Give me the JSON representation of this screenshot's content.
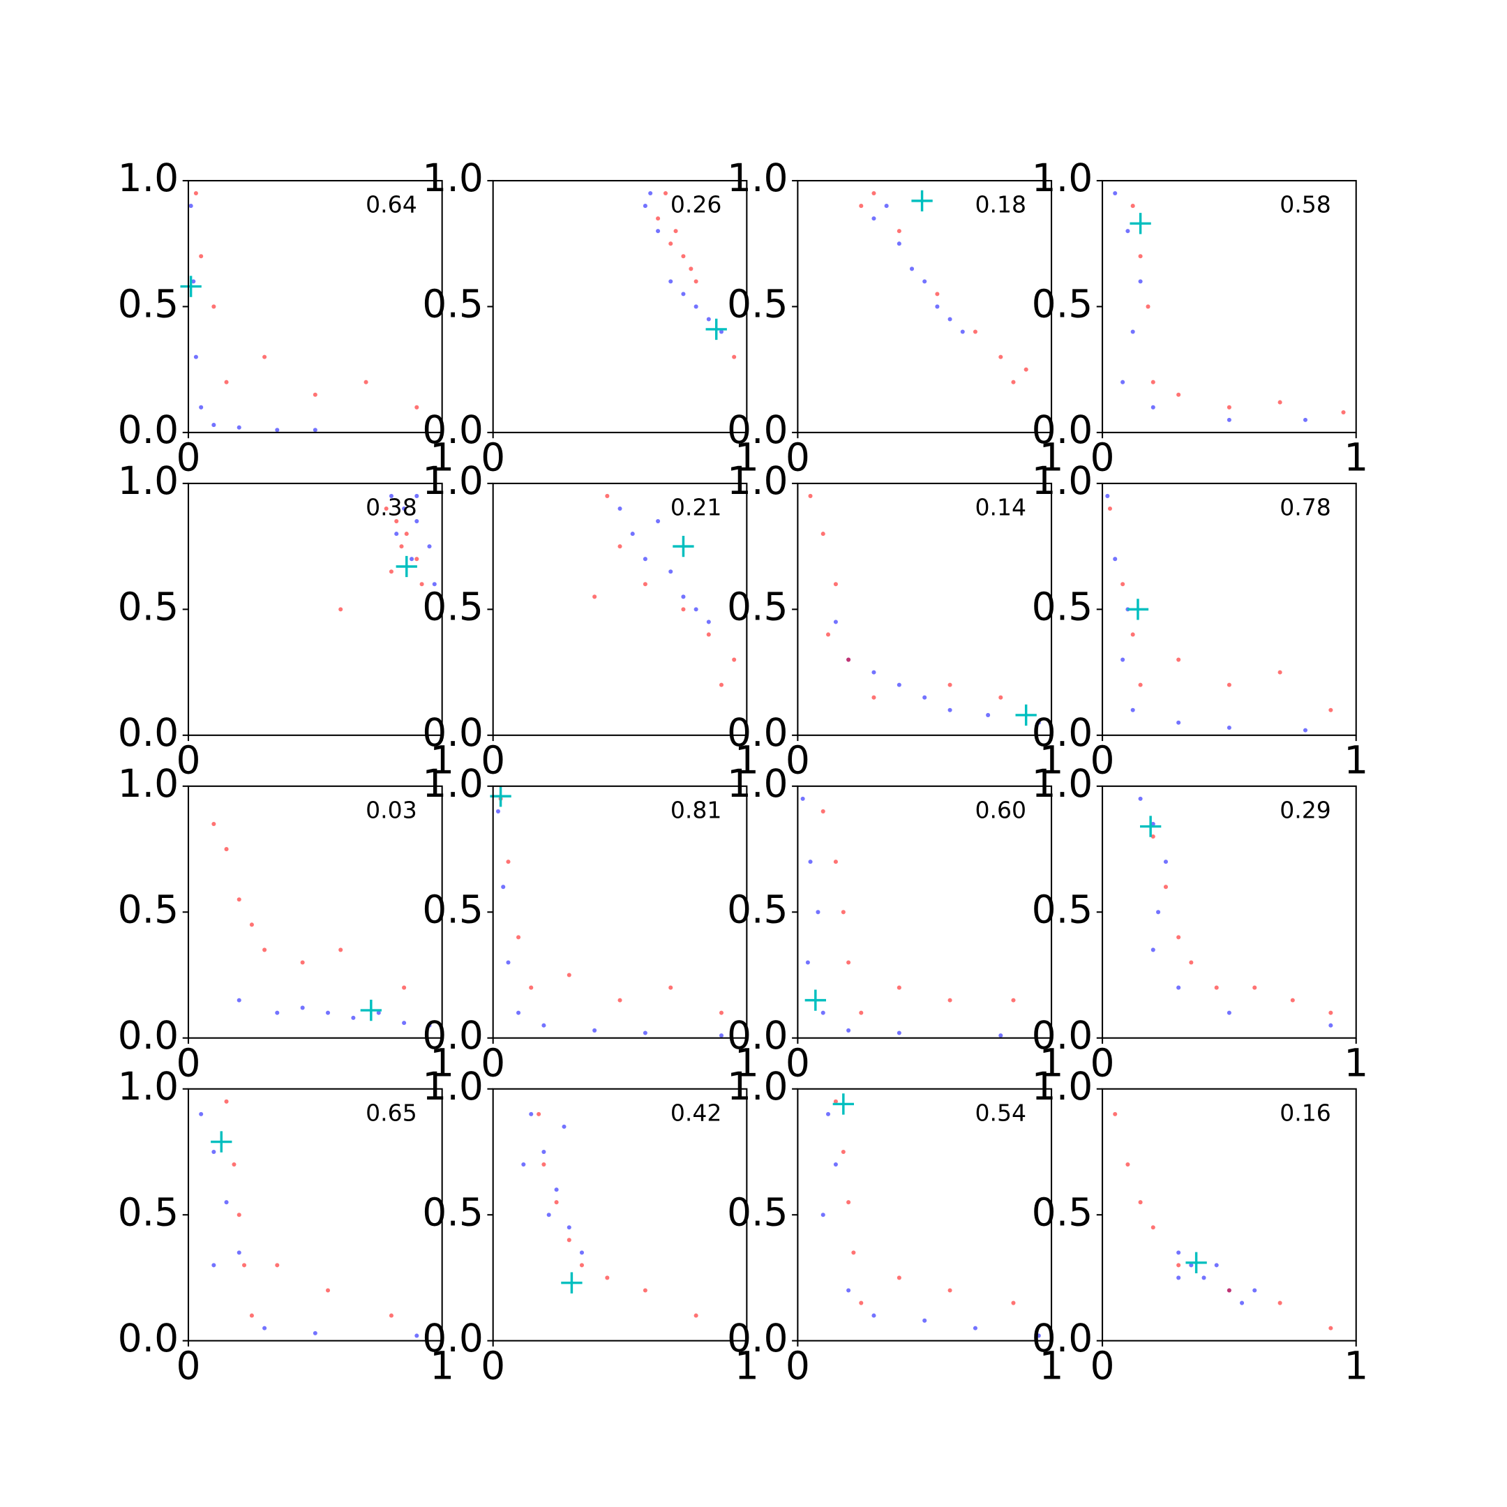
{
  "chart_data": {
    "type": "scatter",
    "xlim": [
      0,
      1
    ],
    "ylim": [
      0,
      1
    ],
    "xticks": [
      0,
      1
    ],
    "yticks": [
      {
        "value": 0,
        "label": "0.0"
      },
      {
        "value": 0.5,
        "label": "0.5"
      },
      {
        "value": 1,
        "label": "1.0"
      }
    ],
    "series_colors": [
      "#0000ff",
      "#ff0000"
    ],
    "marker_color": "#00bfbf",
    "panels": [
      {
        "annotation": "0.64",
        "marker": [
          0.01,
          0.58
        ],
        "series": [
          {
            "x": [
              0.01,
              0.02,
              0.03,
              0.05,
              0.1,
              0.2,
              0.35,
              0.5
            ],
            "y": [
              0.9,
              0.6,
              0.3,
              0.1,
              0.03,
              0.02,
              0.01,
              0.01
            ]
          },
          {
            "x": [
              0.03,
              0.05,
              0.1,
              0.15,
              0.3,
              0.5,
              0.7,
              0.9
            ],
            "y": [
              0.95,
              0.7,
              0.5,
              0.2,
              0.3,
              0.15,
              0.2,
              0.1
            ]
          }
        ]
      },
      {
        "annotation": "0.26",
        "marker": [
          0.88,
          0.41
        ],
        "series": [
          {
            "x": [
              0.6,
              0.65,
              0.7,
              0.75,
              0.8,
              0.85,
              0.62,
              0.9
            ],
            "y": [
              0.9,
              0.8,
              0.6,
              0.55,
              0.5,
              0.45,
              0.95,
              0.4
            ]
          },
          {
            "x": [
              0.65,
              0.7,
              0.75,
              0.78,
              0.8,
              0.72,
              0.68,
              0.95
            ],
            "y": [
              0.85,
              0.75,
              0.7,
              0.65,
              0.6,
              0.8,
              0.95,
              0.3
            ]
          }
        ]
      },
      {
        "annotation": "0.18",
        "marker": [
          0.49,
          0.92
        ],
        "series": [
          {
            "x": [
              0.3,
              0.4,
              0.45,
              0.5,
              0.55,
              0.6,
              0.35,
              0.65
            ],
            "y": [
              0.85,
              0.75,
              0.65,
              0.6,
              0.5,
              0.45,
              0.9,
              0.4
            ]
          },
          {
            "x": [
              0.3,
              0.4,
              0.55,
              0.7,
              0.8,
              0.9,
              0.25,
              0.85
            ],
            "y": [
              0.95,
              0.8,
              0.55,
              0.4,
              0.3,
              0.25,
              0.9,
              0.2
            ]
          }
        ]
      },
      {
        "annotation": "0.58",
        "marker": [
          0.15,
          0.83
        ],
        "series": [
          {
            "x": [
              0.05,
              0.1,
              0.15,
              0.12,
              0.08,
              0.2,
              0.5,
              0.8
            ],
            "y": [
              0.95,
              0.8,
              0.6,
              0.4,
              0.2,
              0.1,
              0.05,
              0.05
            ]
          },
          {
            "x": [
              0.12,
              0.15,
              0.18,
              0.2,
              0.3,
              0.5,
              0.7,
              0.95
            ],
            "y": [
              0.9,
              0.7,
              0.5,
              0.2,
              0.15,
              0.1,
              0.12,
              0.08
            ]
          }
        ]
      },
      {
        "annotation": "0.38",
        "marker": [
          0.86,
          0.67
        ],
        "series": [
          {
            "x": [
              0.8,
              0.85,
              0.9,
              0.95,
              0.88,
              0.82,
              0.97,
              0.9
            ],
            "y": [
              0.95,
              0.9,
              0.85,
              0.75,
              0.7,
              0.8,
              0.6,
              0.95
            ]
          },
          {
            "x": [
              0.78,
              0.82,
              0.86,
              0.9,
              0.84,
              0.8,
              0.92,
              0.6
            ],
            "y": [
              0.9,
              0.85,
              0.8,
              0.7,
              0.75,
              0.65,
              0.6,
              0.5
            ]
          }
        ]
      },
      {
        "annotation": "0.21",
        "marker": [
          0.75,
          0.75
        ],
        "series": [
          {
            "x": [
              0.5,
              0.55,
              0.6,
              0.7,
              0.75,
              0.8,
              0.65,
              0.85
            ],
            "y": [
              0.9,
              0.8,
              0.7,
              0.65,
              0.55,
              0.5,
              0.85,
              0.45
            ]
          },
          {
            "x": [
              0.45,
              0.5,
              0.6,
              0.75,
              0.85,
              0.95,
              0.4,
              0.9
            ],
            "y": [
              0.95,
              0.75,
              0.6,
              0.5,
              0.4,
              0.3,
              0.55,
              0.2
            ]
          }
        ]
      },
      {
        "annotation": "0.14",
        "marker": [
          0.9,
          0.08
        ],
        "series": [
          {
            "x": [
              0.15,
              0.2,
              0.3,
              0.4,
              0.5,
              0.6,
              0.75,
              0.95
            ],
            "y": [
              0.45,
              0.3,
              0.25,
              0.2,
              0.15,
              0.1,
              0.08,
              0.05
            ]
          },
          {
            "x": [
              0.05,
              0.1,
              0.15,
              0.12,
              0.2,
              0.3,
              0.6,
              0.8
            ],
            "y": [
              0.95,
              0.8,
              0.6,
              0.4,
              0.3,
              0.15,
              0.2,
              0.15
            ]
          }
        ]
      },
      {
        "annotation": "0.78",
        "marker": [
          0.14,
          0.5
        ],
        "series": [
          {
            "x": [
              0.02,
              0.05,
              0.1,
              0.08,
              0.12,
              0.3,
              0.5,
              0.8
            ],
            "y": [
              0.95,
              0.7,
              0.5,
              0.3,
              0.1,
              0.05,
              0.03,
              0.02
            ]
          },
          {
            "x": [
              0.03,
              0.08,
              0.12,
              0.15,
              0.3,
              0.5,
              0.7,
              0.9
            ],
            "y": [
              0.9,
              0.6,
              0.4,
              0.2,
              0.3,
              0.2,
              0.25,
              0.1
            ]
          }
        ]
      },
      {
        "annotation": "0.03",
        "marker": [
          0.72,
          0.11
        ],
        "series": [
          {
            "x": [
              0.35,
              0.45,
              0.55,
              0.65,
              0.75,
              0.85,
              0.95,
              0.2
            ],
            "y": [
              0.1,
              0.12,
              0.1,
              0.08,
              0.1,
              0.06,
              0.05,
              0.15
            ]
          },
          {
            "x": [
              0.1,
              0.15,
              0.2,
              0.25,
              0.3,
              0.45,
              0.6,
              0.85
            ],
            "y": [
              0.85,
              0.75,
              0.55,
              0.45,
              0.35,
              0.3,
              0.35,
              0.2
            ]
          }
        ]
      },
      {
        "annotation": "0.81",
        "marker": [
          0.03,
          0.96
        ],
        "series": [
          {
            "x": [
              0.02,
              0.04,
              0.06,
              0.1,
              0.2,
              0.4,
              0.6,
              0.9
            ],
            "y": [
              0.9,
              0.6,
              0.3,
              0.1,
              0.05,
              0.03,
              0.02,
              0.01
            ]
          },
          {
            "x": [
              0.03,
              0.06,
              0.1,
              0.15,
              0.3,
              0.5,
              0.7,
              0.9
            ],
            "y": [
              0.95,
              0.7,
              0.4,
              0.2,
              0.25,
              0.15,
              0.2,
              0.1
            ]
          }
        ]
      },
      {
        "annotation": "0.60",
        "marker": [
          0.07,
          0.15
        ],
        "series": [
          {
            "x": [
              0.02,
              0.05,
              0.08,
              0.04,
              0.1,
              0.2,
              0.4,
              0.8
            ],
            "y": [
              0.95,
              0.7,
              0.5,
              0.3,
              0.1,
              0.03,
              0.02,
              0.01
            ]
          },
          {
            "x": [
              0.1,
              0.15,
              0.18,
              0.2,
              0.25,
              0.4,
              0.6,
              0.85
            ],
            "y": [
              0.9,
              0.7,
              0.5,
              0.3,
              0.1,
              0.2,
              0.15,
              0.15
            ]
          }
        ]
      },
      {
        "annotation": "0.29",
        "marker": [
          0.19,
          0.84
        ],
        "series": [
          {
            "x": [
              0.15,
              0.2,
              0.25,
              0.22,
              0.2,
              0.3,
              0.5,
              0.9
            ],
            "y": [
              0.95,
              0.85,
              0.7,
              0.5,
              0.35,
              0.2,
              0.1,
              0.05
            ]
          },
          {
            "x": [
              0.2,
              0.25,
              0.3,
              0.35,
              0.45,
              0.6,
              0.75,
              0.9
            ],
            "y": [
              0.8,
              0.6,
              0.4,
              0.3,
              0.2,
              0.2,
              0.15,
              0.1
            ]
          }
        ]
      },
      {
        "annotation": "0.65",
        "marker": [
          0.13,
          0.79
        ],
        "series": [
          {
            "x": [
              0.05,
              0.1,
              0.15,
              0.2,
              0.1,
              0.3,
              0.5,
              0.9
            ],
            "y": [
              0.9,
              0.75,
              0.55,
              0.35,
              0.3,
              0.05,
              0.03,
              0.02
            ]
          },
          {
            "x": [
              0.15,
              0.18,
              0.2,
              0.22,
              0.25,
              0.35,
              0.55,
              0.8
            ],
            "y": [
              0.95,
              0.7,
              0.5,
              0.3,
              0.1,
              0.3,
              0.2,
              0.1
            ]
          }
        ]
      },
      {
        "annotation": "0.42",
        "marker": [
          0.31,
          0.23
        ],
        "series": [
          {
            "x": [
              0.15,
              0.2,
              0.25,
              0.3,
              0.22,
              0.35,
              0.12,
              0.28
            ],
            "y": [
              0.9,
              0.75,
              0.6,
              0.45,
              0.5,
              0.35,
              0.7,
              0.85
            ]
          },
          {
            "x": [
              0.2,
              0.25,
              0.3,
              0.35,
              0.45,
              0.6,
              0.8,
              0.18
            ],
            "y": [
              0.7,
              0.55,
              0.4,
              0.3,
              0.25,
              0.2,
              0.1,
              0.9
            ]
          }
        ]
      },
      {
        "annotation": "0.54",
        "marker": [
          0.18,
          0.94
        ],
        "series": [
          {
            "x": [
              0.12,
              0.15,
              0.1,
              0.2,
              0.3,
              0.5,
              0.7,
              0.95
            ],
            "y": [
              0.9,
              0.7,
              0.5,
              0.2,
              0.1,
              0.08,
              0.05,
              0.02
            ]
          },
          {
            "x": [
              0.15,
              0.18,
              0.2,
              0.22,
              0.25,
              0.4,
              0.6,
              0.85
            ],
            "y": [
              0.95,
              0.75,
              0.55,
              0.35,
              0.15,
              0.25,
              0.2,
              0.15
            ]
          }
        ]
      },
      {
        "annotation": "0.16",
        "marker": [
          0.37,
          0.31
        ],
        "series": [
          {
            "x": [
              0.3,
              0.35,
              0.4,
              0.45,
              0.5,
              0.55,
              0.3,
              0.6
            ],
            "y": [
              0.35,
              0.3,
              0.25,
              0.3,
              0.2,
              0.15,
              0.25,
              0.2
            ]
          },
          {
            "x": [
              0.05,
              0.1,
              0.15,
              0.2,
              0.3,
              0.5,
              0.7,
              0.9
            ],
            "y": [
              0.9,
              0.7,
              0.55,
              0.45,
              0.3,
              0.2,
              0.15,
              0.05
            ]
          }
        ]
      }
    ]
  }
}
